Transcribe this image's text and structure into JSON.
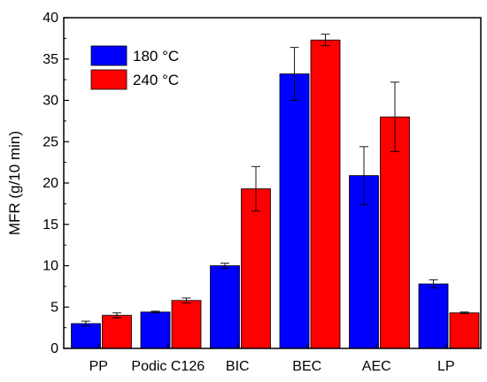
{
  "chart_data": {
    "type": "bar",
    "title": "",
    "xlabel": "",
    "ylabel": "MFR (g/10 min)",
    "ylim": [
      0,
      40
    ],
    "yticks": [
      0,
      5,
      10,
      15,
      20,
      25,
      30,
      35,
      40
    ],
    "categories": [
      "PP",
      "Podic C126",
      "BIC",
      "BEC",
      "AEC",
      "LP"
    ],
    "series": [
      {
        "name": "180 °C",
        "color": "#0000ff",
        "values": [
          3.0,
          4.4,
          10.0,
          33.2,
          20.9,
          7.8
        ],
        "errors": [
          0.3,
          0.1,
          0.3,
          3.2,
          3.5,
          0.5
        ]
      },
      {
        "name": "240 °C",
        "color": "#ff0000",
        "values": [
          4.0,
          5.8,
          19.3,
          37.3,
          28.0,
          4.3
        ],
        "errors": [
          0.3,
          0.3,
          2.7,
          0.7,
          4.2,
          0.1
        ]
      }
    ],
    "grid": false,
    "legend_position": "top-left",
    "error_bars": true
  }
}
